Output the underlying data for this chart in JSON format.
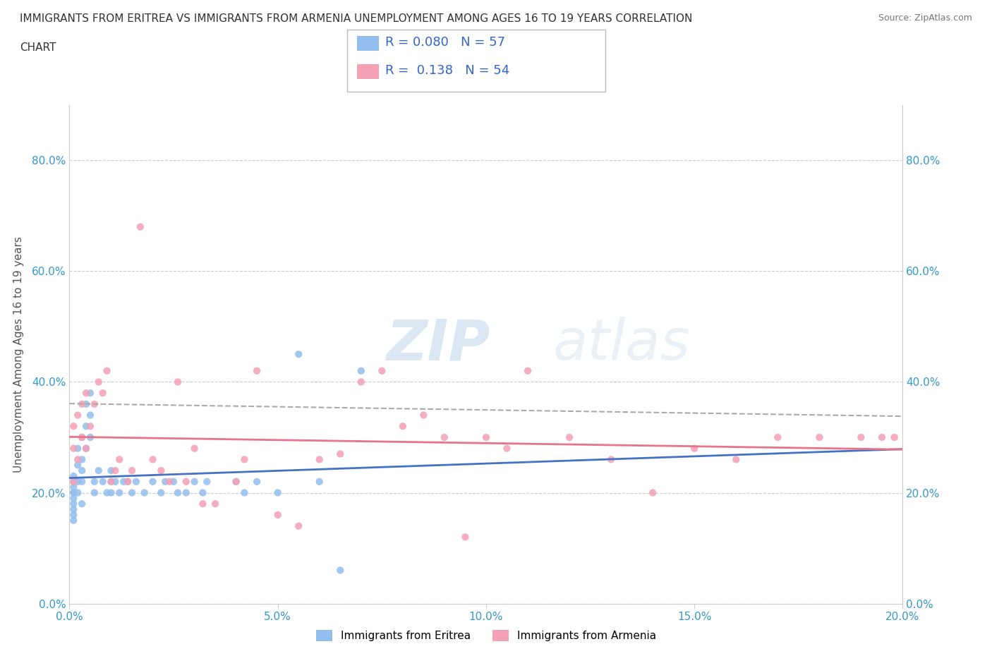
{
  "title_line1": "IMMIGRANTS FROM ERITREA VS IMMIGRANTS FROM ARMENIA UNEMPLOYMENT AMONG AGES 16 TO 19 YEARS CORRELATION",
  "title_line2": "CHART",
  "source_text": "Source: ZipAtlas.com",
  "ylabel": "Unemployment Among Ages 16 to 19 years",
  "xlim": [
    0.0,
    0.2
  ],
  "ylim": [
    0.0,
    0.9
  ],
  "xticks": [
    0.0,
    0.05,
    0.1,
    0.15,
    0.2
  ],
  "yticks": [
    0.0,
    0.2,
    0.4,
    0.6,
    0.8
  ],
  "xticklabels": [
    "0.0%",
    "5.0%",
    "10.0%",
    "15.0%",
    "20.0%"
  ],
  "yticklabels": [
    "0.0%",
    "20.0%",
    "40.0%",
    "60.0%",
    "80.0%"
  ],
  "eritrea_color": "#92BFED",
  "armenia_color": "#F4A0B5",
  "regression_eritrea_color": "#4472C4",
  "regression_armenia_color": "#E8748A",
  "regression_dashed_color": "#AAAAAA",
  "R_eritrea": 0.08,
  "N_eritrea": 57,
  "R_armenia": 0.138,
  "N_armenia": 54,
  "watermark_zip": "ZIP",
  "watermark_atlas": "atlas",
  "legend_label_eritrea": "Immigrants from Eritrea",
  "legend_label_armenia": "Immigrants from Armenia",
  "eritrea_x": [
    0.001,
    0.001,
    0.001,
    0.001,
    0.001,
    0.001,
    0.001,
    0.001,
    0.001,
    0.001,
    0.002,
    0.002,
    0.002,
    0.002,
    0.003,
    0.003,
    0.003,
    0.003,
    0.003,
    0.004,
    0.004,
    0.004,
    0.005,
    0.005,
    0.005,
    0.006,
    0.006,
    0.007,
    0.008,
    0.009,
    0.01,
    0.01,
    0.01,
    0.011,
    0.012,
    0.013,
    0.014,
    0.015,
    0.016,
    0.018,
    0.02,
    0.022,
    0.023,
    0.025,
    0.026,
    0.028,
    0.03,
    0.032,
    0.033,
    0.04,
    0.042,
    0.045,
    0.05,
    0.055,
    0.06,
    0.065,
    0.07
  ],
  "eritrea_y": [
    0.2,
    0.22,
    0.19,
    0.17,
    0.21,
    0.18,
    0.23,
    0.2,
    0.16,
    0.15,
    0.25,
    0.22,
    0.28,
    0.2,
    0.3,
    0.26,
    0.22,
    0.18,
    0.24,
    0.32,
    0.36,
    0.28,
    0.38,
    0.34,
    0.3,
    0.2,
    0.22,
    0.24,
    0.22,
    0.2,
    0.22,
    0.2,
    0.24,
    0.22,
    0.2,
    0.22,
    0.22,
    0.2,
    0.22,
    0.2,
    0.22,
    0.2,
    0.22,
    0.22,
    0.2,
    0.2,
    0.22,
    0.2,
    0.22,
    0.22,
    0.2,
    0.22,
    0.2,
    0.45,
    0.22,
    0.06,
    0.42
  ],
  "armenia_x": [
    0.001,
    0.001,
    0.001,
    0.002,
    0.002,
    0.003,
    0.003,
    0.004,
    0.004,
    0.005,
    0.006,
    0.007,
    0.008,
    0.009,
    0.01,
    0.011,
    0.012,
    0.014,
    0.015,
    0.017,
    0.02,
    0.022,
    0.024,
    0.026,
    0.028,
    0.03,
    0.032,
    0.035,
    0.04,
    0.042,
    0.045,
    0.05,
    0.055,
    0.06,
    0.065,
    0.07,
    0.075,
    0.08,
    0.085,
    0.09,
    0.095,
    0.1,
    0.105,
    0.11,
    0.12,
    0.13,
    0.14,
    0.15,
    0.16,
    0.17,
    0.18,
    0.19,
    0.195,
    0.198
  ],
  "armenia_y": [
    0.22,
    0.28,
    0.32,
    0.26,
    0.34,
    0.3,
    0.36,
    0.28,
    0.38,
    0.32,
    0.36,
    0.4,
    0.38,
    0.42,
    0.22,
    0.24,
    0.26,
    0.22,
    0.24,
    0.68,
    0.26,
    0.24,
    0.22,
    0.4,
    0.22,
    0.28,
    0.18,
    0.18,
    0.22,
    0.26,
    0.42,
    0.16,
    0.14,
    0.26,
    0.27,
    0.4,
    0.42,
    0.32,
    0.34,
    0.3,
    0.12,
    0.3,
    0.28,
    0.42,
    0.3,
    0.26,
    0.2,
    0.28,
    0.26,
    0.3,
    0.3,
    0.3,
    0.3,
    0.3
  ]
}
